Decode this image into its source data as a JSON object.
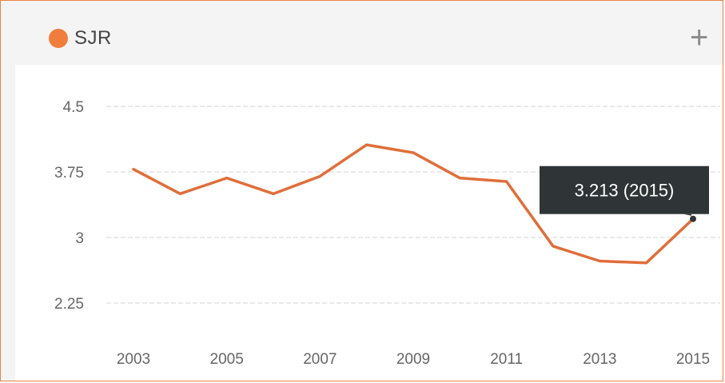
{
  "legend": {
    "label": "SJR",
    "dot_color": "#f07d3c"
  },
  "add_icon": "+",
  "colors": {
    "line": "#e06e3a",
    "grid": "#e3e3e3",
    "tooltip_bg": "#2f3436"
  },
  "chart_data": {
    "type": "line",
    "x": [
      2003,
      2004,
      2005,
      2006,
      2007,
      2008,
      2009,
      2010,
      2011,
      2012,
      2013,
      2014,
      2015
    ],
    "series": [
      {
        "name": "SJR",
        "values": [
          3.78,
          3.5,
          3.68,
          3.5,
          3.7,
          4.06,
          3.97,
          3.68,
          3.64,
          2.9,
          2.73,
          2.71,
          3.213
        ]
      }
    ],
    "xticks": [
      "2003",
      "2005",
      "2007",
      "2009",
      "2011",
      "2013",
      "2015"
    ],
    "yticks": [
      {
        "value": 4.5,
        "label": "4.5"
      },
      {
        "value": 3.75,
        "label": "3.75"
      },
      {
        "value": 3,
        "label": "3"
      },
      {
        "value": 2.25,
        "label": "2.25"
      }
    ],
    "ylim": [
      2.25,
      4.5
    ],
    "grid": true,
    "tooltip": {
      "text": "3.213 (2015)",
      "x": 2015,
      "y": 3.213
    }
  }
}
